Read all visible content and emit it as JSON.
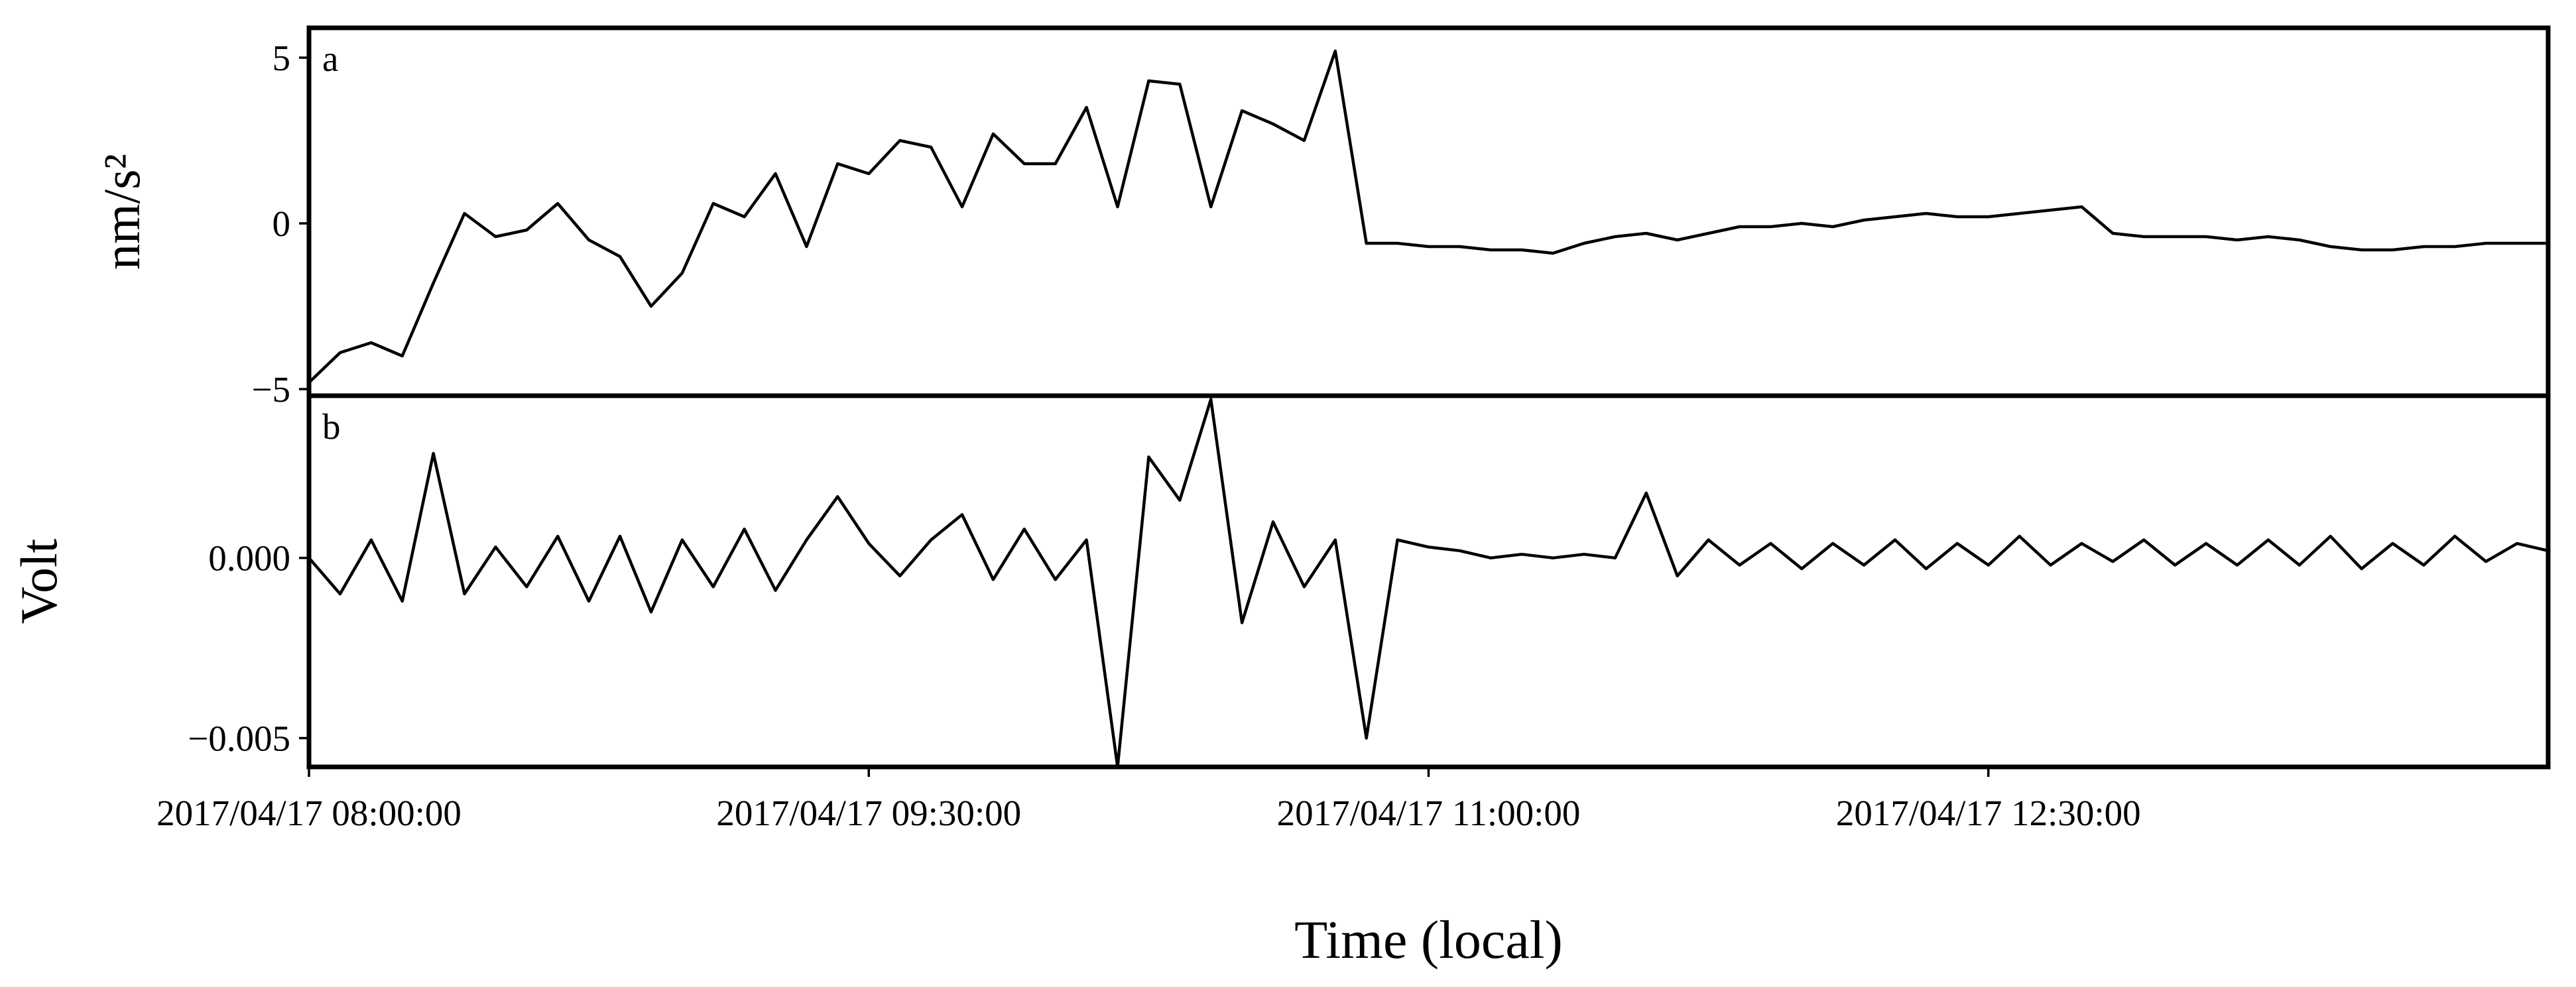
{
  "chart_data": [
    {
      "type": "line",
      "annotation": "a",
      "ylabel": "nm/s²",
      "x": [
        "2017/04/17 08:00:00",
        "2017/04/17 08:05:00",
        "2017/04/17 08:10:00",
        "2017/04/17 08:15:00",
        "2017/04/17 08:20:00",
        "2017/04/17 08:25:00",
        "2017/04/17 08:30:00",
        "2017/04/17 08:35:00",
        "2017/04/17 08:40:00",
        "2017/04/17 08:45:00",
        "2017/04/17 08:50:00",
        "2017/04/17 08:55:00",
        "2017/04/17 09:00:00",
        "2017/04/17 09:05:00",
        "2017/04/17 09:10:00",
        "2017/04/17 09:15:00",
        "2017/04/17 09:20:00",
        "2017/04/17 09:25:00",
        "2017/04/17 09:30:00",
        "2017/04/17 09:35:00",
        "2017/04/17 09:40:00",
        "2017/04/17 09:45:00",
        "2017/04/17 09:50:00",
        "2017/04/17 09:55:00",
        "2017/04/17 10:00:00",
        "2017/04/17 10:05:00",
        "2017/04/17 10:10:00",
        "2017/04/17 10:15:00",
        "2017/04/17 10:20:00",
        "2017/04/17 10:25:00",
        "2017/04/17 10:30:00",
        "2017/04/17 10:35:00",
        "2017/04/17 10:40:00",
        "2017/04/17 10:45:00",
        "2017/04/17 10:50:00",
        "2017/04/17 10:55:00",
        "2017/04/17 11:00:00",
        "2017/04/17 11:05:00",
        "2017/04/17 11:10:00",
        "2017/04/17 11:15:00",
        "2017/04/17 11:20:00",
        "2017/04/17 11:25:00",
        "2017/04/17 11:30:00",
        "2017/04/17 11:35:00",
        "2017/04/17 11:40:00",
        "2017/04/17 11:45:00",
        "2017/04/17 11:50:00",
        "2017/04/17 11:55:00",
        "2017/04/17 12:00:00",
        "2017/04/17 12:05:00",
        "2017/04/17 12:10:00",
        "2017/04/17 12:15:00",
        "2017/04/17 12:20:00",
        "2017/04/17 12:25:00",
        "2017/04/17 12:30:00",
        "2017/04/17 12:35:00",
        "2017/04/17 12:40:00",
        "2017/04/17 12:45:00",
        "2017/04/17 12:50:00",
        "2017/04/17 12:55:00",
        "2017/04/17 13:00:00",
        "2017/04/17 13:05:00",
        "2017/04/17 13:10:00",
        "2017/04/17 13:15:00",
        "2017/04/17 13:20:00",
        "2017/04/17 13:25:00",
        "2017/04/17 13:30:00",
        "2017/04/17 13:35:00",
        "2017/04/17 13:40:00",
        "2017/04/17 13:45:00",
        "2017/04/17 13:50:00",
        "2017/04/17 13:55:00",
        "2017/04/17 14:00:00"
      ],
      "series": [
        {
          "color": "#000000",
          "values": [
            -4.8,
            -3.9,
            -3.6,
            -4.0,
            -1.8,
            0.3,
            -0.4,
            -0.2,
            0.6,
            -0.5,
            -1.0,
            -2.5,
            -1.5,
            0.6,
            0.2,
            1.5,
            -0.7,
            1.8,
            1.5,
            2.5,
            2.3,
            0.5,
            2.7,
            1.8,
            1.8,
            3.5,
            0.5,
            4.3,
            4.2,
            0.5,
            3.4,
            3.0,
            2.5,
            5.2,
            -0.6,
            -0.6,
            -0.7,
            -0.7,
            -0.8,
            -0.8,
            -0.9,
            -0.6,
            -0.4,
            -0.3,
            -0.5,
            -0.3,
            -0.1,
            -0.1,
            0.0,
            -0.1,
            0.1,
            0.2,
            0.3,
            0.2,
            0.2,
            0.3,
            0.4,
            0.5,
            -0.3,
            -0.4,
            -0.4,
            -0.4,
            -0.5,
            -0.4,
            -0.5,
            -0.7,
            -0.8,
            -0.8,
            -0.7,
            -0.7,
            -0.6,
            -0.6,
            -0.6
          ]
        }
      ],
      "xlim": [
        "2017/04/17 08:00:00",
        "2017/04/17 14:00:00"
      ],
      "ylim": [
        -5.2,
        5.9
      ],
      "yticks": [
        {
          "value": -5,
          "label": "−5"
        },
        0,
        5
      ]
    },
    {
      "type": "line",
      "annotation": "b",
      "ylabel": "Volt",
      "xlabel": "Time (local)",
      "x": [
        "2017/04/17 08:00:00",
        "2017/04/17 08:05:00",
        "2017/04/17 08:10:00",
        "2017/04/17 08:15:00",
        "2017/04/17 08:20:00",
        "2017/04/17 08:25:00",
        "2017/04/17 08:30:00",
        "2017/04/17 08:35:00",
        "2017/04/17 08:40:00",
        "2017/04/17 08:45:00",
        "2017/04/17 08:50:00",
        "2017/04/17 08:55:00",
        "2017/04/17 09:00:00",
        "2017/04/17 09:05:00",
        "2017/04/17 09:10:00",
        "2017/04/17 09:15:00",
        "2017/04/17 09:20:00",
        "2017/04/17 09:25:00",
        "2017/04/17 09:30:00",
        "2017/04/17 09:35:00",
        "2017/04/17 09:40:00",
        "2017/04/17 09:45:00",
        "2017/04/17 09:50:00",
        "2017/04/17 09:55:00",
        "2017/04/17 10:00:00",
        "2017/04/17 10:05:00",
        "2017/04/17 10:10:00",
        "2017/04/17 10:15:00",
        "2017/04/17 10:20:00",
        "2017/04/17 10:25:00",
        "2017/04/17 10:30:00",
        "2017/04/17 10:35:00",
        "2017/04/17 10:40:00",
        "2017/04/17 10:45:00",
        "2017/04/17 10:50:00",
        "2017/04/17 10:55:00",
        "2017/04/17 11:00:00",
        "2017/04/17 11:05:00",
        "2017/04/17 11:10:00",
        "2017/04/17 11:15:00",
        "2017/04/17 11:20:00",
        "2017/04/17 11:25:00",
        "2017/04/17 11:30:00",
        "2017/04/17 11:35:00",
        "2017/04/17 11:40:00",
        "2017/04/17 11:45:00",
        "2017/04/17 11:50:00",
        "2017/04/17 11:55:00",
        "2017/04/17 12:00:00",
        "2017/04/17 12:05:00",
        "2017/04/17 12:10:00",
        "2017/04/17 12:15:00",
        "2017/04/17 12:20:00",
        "2017/04/17 12:25:00",
        "2017/04/17 12:30:00",
        "2017/04/17 12:35:00",
        "2017/04/17 12:40:00",
        "2017/04/17 12:45:00",
        "2017/04/17 12:50:00",
        "2017/04/17 12:55:00",
        "2017/04/17 13:00:00",
        "2017/04/17 13:05:00",
        "2017/04/17 13:10:00",
        "2017/04/17 13:15:00",
        "2017/04/17 13:20:00",
        "2017/04/17 13:25:00",
        "2017/04/17 13:30:00",
        "2017/04/17 13:35:00",
        "2017/04/17 13:40:00",
        "2017/04/17 13:45:00",
        "2017/04/17 13:50:00",
        "2017/04/17 13:55:00",
        "2017/04/17 14:00:00"
      ],
      "series": [
        {
          "color": "#000000",
          "values": [
            0,
            -0.001,
            0.0005,
            -0.0012,
            0.0029,
            -0.001,
            0.0003,
            -0.0008,
            0.0006,
            -0.0012,
            0.0006,
            -0.0015,
            0.0005,
            -0.0008,
            0.0008,
            -0.0009,
            0.0005,
            0.0017,
            0.0004,
            -0.0005,
            0.0005,
            0.0012,
            -0.0006,
            0.0008,
            -0.0006,
            0.0005,
            -0.0058,
            0.0028,
            0.0016,
            0.0044,
            -0.0018,
            0.001,
            -0.0008,
            0.0005,
            -0.005,
            0.0005,
            0.0003,
            0.0002,
            0,
            0.0001,
            0,
            0.0001,
            0,
            0.0018,
            -0.0005,
            0.0005,
            -0.0002,
            0.0004,
            -0.0003,
            0.0004,
            -0.0002,
            0.0005,
            -0.0003,
            0.0004,
            -0.0002,
            0.0006,
            -0.0002,
            0.0004,
            -0.0001,
            0.0005,
            -0.0002,
            0.0004,
            -0.0002,
            0.0005,
            -0.0002,
            0.0006,
            -0.0003,
            0.0004,
            -0.0002,
            0.0006,
            -0.0001,
            0.0004,
            0.0002
          ]
        }
      ],
      "xlim": [
        "2017/04/17 08:00:00",
        "2017/04/17 14:00:00"
      ],
      "xticks": [
        "2017/04/17 08:00:00",
        "2017/04/17 09:30:00",
        "2017/04/17 11:00:00",
        "2017/04/17 12:30:00"
      ],
      "ylim": [
        -0.0058,
        0.0045
      ],
      "yticks": [
        {
          "value": -0.005,
          "label": "−0.005"
        },
        {
          "value": 0,
          "label": "0.000"
        }
      ]
    }
  ]
}
